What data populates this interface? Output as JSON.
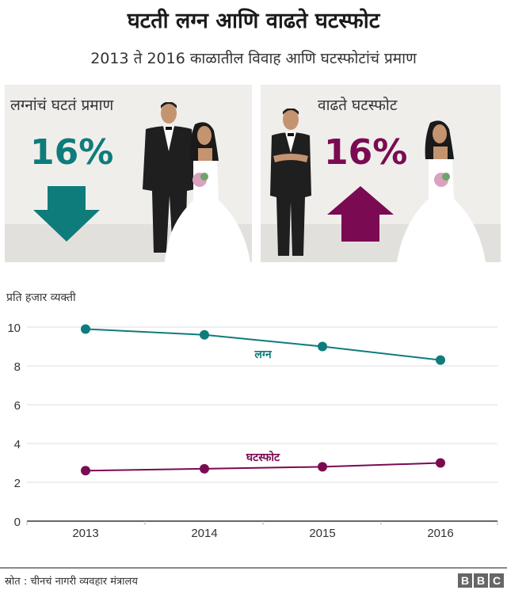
{
  "header": {
    "title": "घटती लग्न आणि वाढते घटस्फोट",
    "subtitle": "2013 ते 2016 काळातील विवाह आणि घटस्फोटांचं प्रमाण"
  },
  "panels": {
    "left": {
      "label": "लग्नांचं घटतं प्रमाण",
      "value": "16%",
      "direction": "down",
      "color": "#0e7c7b",
      "icon": "arrow-down-icon"
    },
    "right": {
      "label": "वाढते घटस्फोट",
      "value": "16%",
      "direction": "up",
      "color": "#7a0b52",
      "icon": "arrow-up-icon"
    }
  },
  "colors": {
    "marriage": "#0e7c7b",
    "divorce": "#7a0b52",
    "panel_bg": "#f0eeeb",
    "panel_floor": "#e2e0dd",
    "grid": "#dddddd",
    "axis": "#333333"
  },
  "chart_data": {
    "type": "line",
    "title": "घटती लग्न आणि वाढते घटस्फोट",
    "subtitle": "2013 ते 2016 काळातील विवाह आणि घटस्फोटांचं प्रमाण",
    "xlabel": "",
    "ylabel": "प्रति हजार व्यक्ती",
    "categories": [
      "2013",
      "2014",
      "2015",
      "2016"
    ],
    "series": [
      {
        "name": "लग्न",
        "color": "#0e7c7b",
        "values": [
          9.9,
          9.6,
          9.0,
          8.3
        ]
      },
      {
        "name": "घटस्फोट",
        "color": "#7a0b52",
        "values": [
          2.6,
          2.7,
          2.8,
          3.0
        ]
      }
    ],
    "yticks": [
      "0",
      "2",
      "4",
      "6",
      "8",
      "10"
    ],
    "ylim": [
      0,
      10
    ],
    "grid": true,
    "legend": "inline labels"
  },
  "footer": {
    "source": "स्रोत : चीनचं नागरी व्यवहार मंत्रालय",
    "logo": [
      "B",
      "B",
      "C"
    ]
  }
}
